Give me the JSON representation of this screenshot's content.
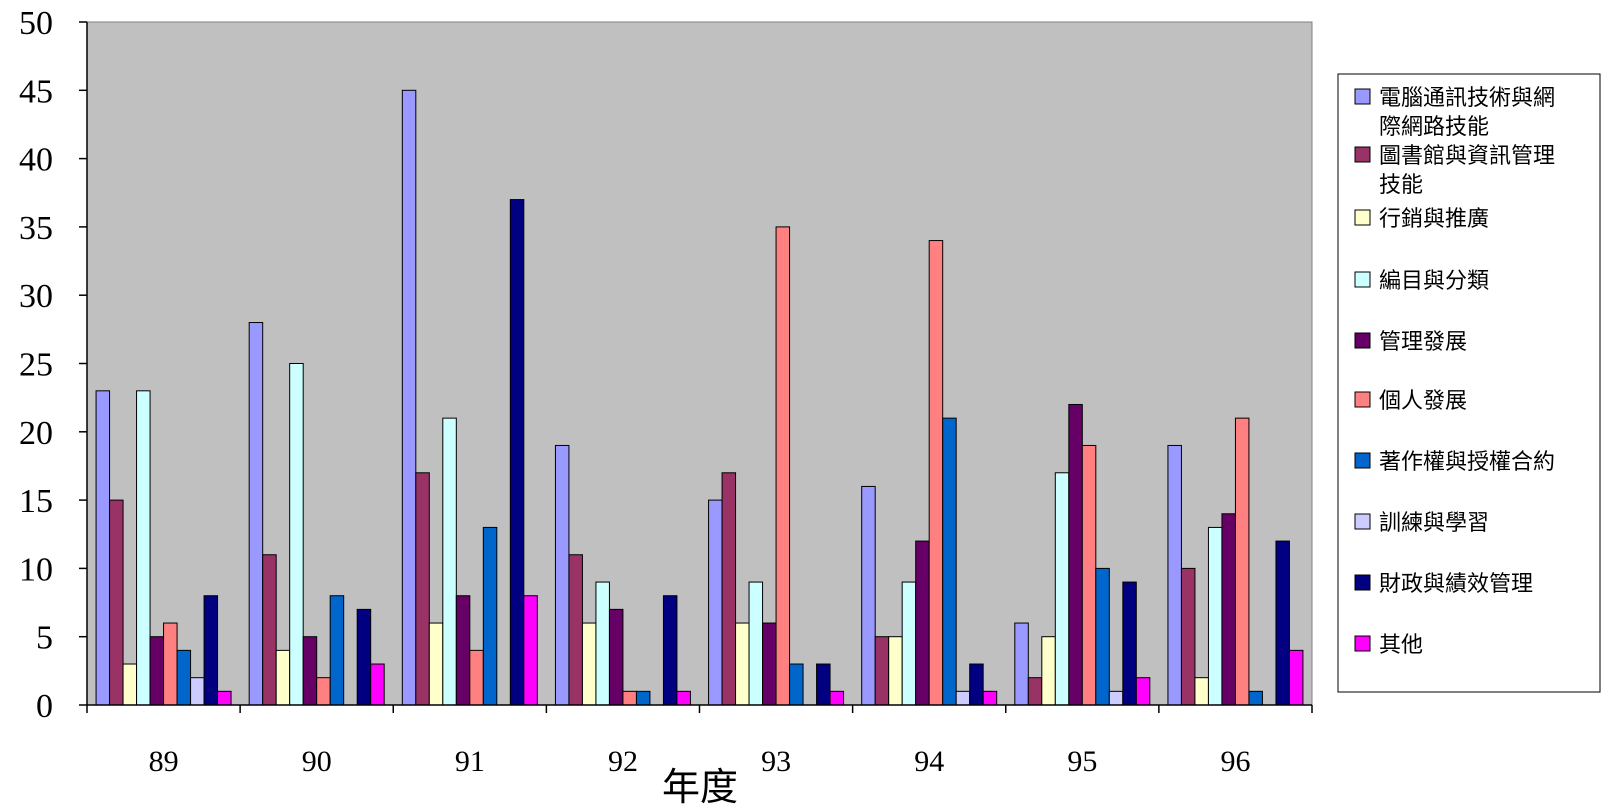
{
  "chart_data": {
    "type": "bar",
    "title": "",
    "xlabel": "年度",
    "ylabel": "",
    "ylim": [
      0,
      50
    ],
    "yticks": [
      "0",
      "5",
      "10",
      "15",
      "20",
      "25",
      "30",
      "35",
      "40",
      "45",
      "50"
    ],
    "categories": [
      "89",
      "90",
      "91",
      "92",
      "93",
      "94",
      "95",
      "96"
    ],
    "legend_position": "right",
    "plot_background": "#C0C0C0",
    "series": [
      {
        "name": "電腦通訊技術與網際網路技能",
        "legend_lines": [
          "電腦通訊技術與網",
          "際網路技能"
        ],
        "color": "#9999FF",
        "values": [
          23,
          28,
          45,
          19,
          15,
          16,
          6,
          19
        ]
      },
      {
        "name": "圖書館與資訊管理技能",
        "legend_lines": [
          "圖書館與資訊管理",
          "技能"
        ],
        "color": "#993366",
        "values": [
          15,
          11,
          17,
          11,
          17,
          5,
          2,
          10
        ]
      },
      {
        "name": "行銷與推廣",
        "legend_lines": [
          "行銷與推廣"
        ],
        "color": "#FFFFCC",
        "values": [
          3,
          4,
          6,
          6,
          6,
          5,
          5,
          2
        ]
      },
      {
        "name": "編目與分類",
        "legend_lines": [
          "編目與分類"
        ],
        "color": "#CCFFFF",
        "values": [
          23,
          25,
          21,
          9,
          9,
          9,
          17,
          13
        ]
      },
      {
        "name": "管理發展",
        "legend_lines": [
          "管理發展"
        ],
        "color": "#660066",
        "values": [
          5,
          5,
          8,
          7,
          6,
          12,
          22,
          14
        ]
      },
      {
        "name": "個人發展",
        "legend_lines": [
          "個人發展"
        ],
        "color": "#FF8080",
        "values": [
          6,
          2,
          4,
          1,
          35,
          34,
          19,
          21
        ]
      },
      {
        "name": "著作權與授權合約",
        "legend_lines": [
          "著作權與授權合約"
        ],
        "color": "#0066CC",
        "values": [
          4,
          8,
          13,
          1,
          3,
          21,
          10,
          1
        ]
      },
      {
        "name": "訓練與學習",
        "legend_lines": [
          "訓練與學習"
        ],
        "color": "#CCCCFF",
        "values": [
          2,
          0,
          0,
          0,
          0,
          1,
          1,
          0
        ]
      },
      {
        "name": "財政與績效管理",
        "legend_lines": [
          "財政與績效管理"
        ],
        "color": "#000080",
        "values": [
          8,
          7,
          37,
          8,
          3,
          3,
          9,
          12
        ]
      },
      {
        "name": "其他",
        "legend_lines": [
          "其他"
        ],
        "color": "#FF00FF",
        "values": [
          1,
          3,
          8,
          1,
          1,
          1,
          2,
          4
        ]
      }
    ]
  }
}
